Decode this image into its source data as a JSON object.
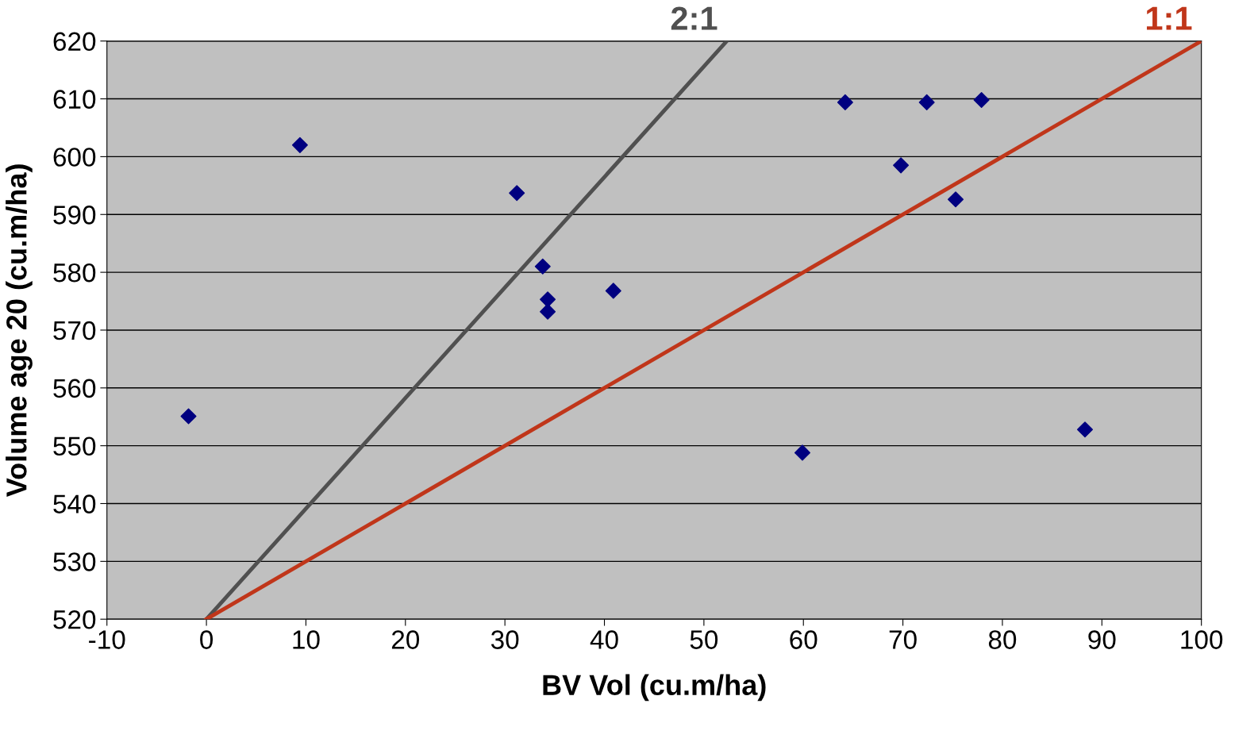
{
  "chart_data": {
    "type": "scatter",
    "xlabel": "BV Vol (cu.m/ha)",
    "ylabel": "Volume age 20 (cu.m/ha)",
    "xlim": [
      -10,
      100
    ],
    "ylim": [
      520,
      620
    ],
    "xticks": [
      -10,
      0,
      10,
      20,
      30,
      40,
      50,
      60,
      70,
      80,
      90,
      100
    ],
    "yticks": [
      520,
      530,
      540,
      550,
      560,
      570,
      580,
      590,
      600,
      610,
      620
    ],
    "grid": "y",
    "legend": false,
    "marker": "diamond",
    "series": [
      {
        "color": "#000080",
        "x": [
          -1.8,
          9.4,
          31.2,
          33.8,
          34.3,
          34.3,
          40.9,
          59.9,
          64.2,
          69.8,
          72.4,
          75.3,
          77.9,
          88.3
        ],
        "values": [
          555.1,
          602.0,
          593.7,
          581.0,
          575.3,
          573.2,
          576.8,
          548.8,
          609.4,
          598.5,
          609.4,
          592.6,
          609.8,
          552.8
        ]
      },
      {
        "type": "line",
        "name": "2:1",
        "color": "#505050",
        "marker": "none",
        "x": [
          0,
          52.3
        ],
        "values": [
          520,
          620
        ]
      },
      {
        "type": "line",
        "name": "1:1",
        "color": "#c0361a",
        "marker": "none",
        "x": [
          0,
          100
        ],
        "values": [
          520,
          620
        ]
      }
    ]
  }
}
